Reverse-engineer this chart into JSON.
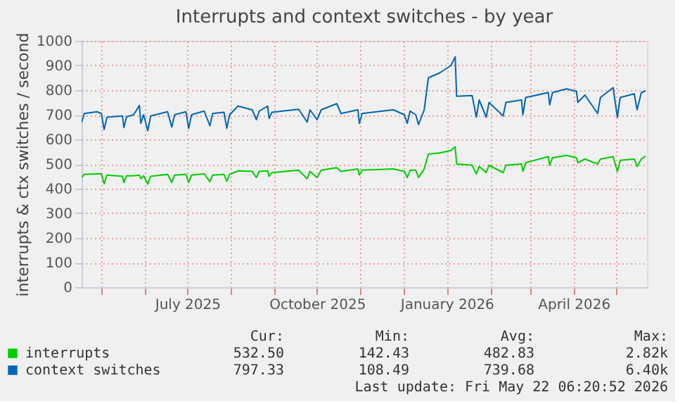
{
  "chart_data": {
    "type": "line",
    "title": "Interrupts and context switches - by year",
    "ylabel": "interrupts & ctx switches / second",
    "x": [
      "2025-04-17",
      "2025-04-19",
      "2025-04-28",
      "2025-05-01",
      "2025-05-03",
      "2025-05-05",
      "2025-05-16",
      "2025-05-17",
      "2025-05-19",
      "2025-05-24",
      "2025-05-28",
      "2025-05-29",
      "2025-05-31",
      "2025-06-03",
      "2025-06-05",
      "2025-06-17",
      "2025-06-20",
      "2025-06-22",
      "2025-06-30",
      "2025-07-02",
      "2025-07-04",
      "2025-07-13",
      "2025-07-17",
      "2025-07-19",
      "2025-07-27",
      "2025-07-29",
      "2025-07-31",
      "2025-08-06",
      "2025-08-16",
      "2025-08-19",
      "2025-08-21",
      "2025-08-27",
      "2025-08-28",
      "2025-08-30",
      "2025-09-18",
      "2025-09-24",
      "2025-09-26",
      "2025-10-01",
      "2025-10-04",
      "2025-10-15",
      "2025-10-18",
      "2025-10-30",
      "2025-10-31",
      "2025-11-02",
      "2025-11-24",
      "2025-12-02",
      "2025-12-04",
      "2025-12-06",
      "2025-12-10",
      "2025-12-12",
      "2025-12-16",
      "2025-12-19",
      "2025-12-27",
      "2026-01-04",
      "2026-01-07",
      "2026-01-08",
      "2026-01-19",
      "2026-01-22",
      "2026-01-24",
      "2026-01-29",
      "2026-01-31",
      "2026-02-10",
      "2026-02-12",
      "2026-02-23",
      "2026-02-24",
      "2026-02-26",
      "2026-03-14",
      "2026-03-15",
      "2026-03-17",
      "2026-03-27",
      "2026-04-03",
      "2026-04-04",
      "2026-04-09",
      "2026-04-18",
      "2026-04-20",
      "2026-04-29",
      "2026-05-02",
      "2026-05-04",
      "2026-05-14",
      "2026-05-16",
      "2026-05-19",
      "2026-05-22"
    ],
    "series": [
      {
        "name": "interrupts",
        "color": "#00cc00",
        "values": [
          445,
          458,
          460,
          460,
          420,
          455,
          450,
          425,
          452,
          452,
          455,
          440,
          452,
          418,
          450,
          458,
          425,
          455,
          458,
          425,
          455,
          460,
          428,
          455,
          458,
          430,
          458,
          472,
          470,
          445,
          470,
          472,
          450,
          465,
          475,
          440,
          470,
          445,
          475,
          485,
          470,
          480,
          455,
          475,
          480,
          470,
          445,
          475,
          475,
          445,
          480,
          540,
          545,
          555,
          570,
          500,
          495,
          460,
          490,
          465,
          495,
          465,
          495,
          500,
          470,
          505,
          530,
          495,
          525,
          535,
          525,
          505,
          520,
          500,
          520,
          530,
          470,
          515,
          520,
          490,
          520,
          532
        ]
      },
      {
        "name": "context switches",
        "color": "#0066b3",
        "values": [
          670,
          705,
          712,
          705,
          640,
          690,
          695,
          648,
          692,
          700,
          738,
          665,
          700,
          635,
          695,
          712,
          650,
          700,
          712,
          645,
          700,
          715,
          655,
          705,
          710,
          645,
          700,
          735,
          720,
          680,
          715,
          735,
          685,
          710,
          722,
          670,
          720,
          680,
          720,
          745,
          705,
          720,
          665,
          705,
          720,
          700,
          665,
          715,
          700,
          660,
          720,
          850,
          870,
          900,
          935,
          775,
          778,
          690,
          760,
          690,
          750,
          695,
          750,
          760,
          700,
          770,
          790,
          740,
          790,
          805,
          795,
          750,
          780,
          705,
          770,
          810,
          690,
          770,
          785,
          720,
          790,
          797
        ]
      }
    ],
    "xlim": [
      "2025-04-17",
      "2026-05-23"
    ],
    "xticks": [
      {
        "value": "2025-05-01",
        "label": null
      },
      {
        "value": "2025-06-01",
        "label": null
      },
      {
        "value": "2025-07-01",
        "label": "July 2025"
      },
      {
        "value": "2025-08-01",
        "label": null
      },
      {
        "value": "2025-09-01",
        "label": null
      },
      {
        "value": "2025-10-01",
        "label": "October 2025"
      },
      {
        "value": "2025-11-01",
        "label": null
      },
      {
        "value": "2025-12-01",
        "label": null
      },
      {
        "value": "2026-01-01",
        "label": "January 2026"
      },
      {
        "value": "2026-02-01",
        "label": null
      },
      {
        "value": "2026-03-01",
        "label": null
      },
      {
        "value": "2026-04-01",
        "label": "April 2026"
      },
      {
        "value": "2026-05-01",
        "label": null
      }
    ],
    "ylim": [
      0,
      1000
    ],
    "yticks": [
      0,
      100,
      200,
      300,
      400,
      500,
      600,
      700,
      800,
      900,
      1000
    ],
    "grid": true,
    "legend": "bottom",
    "marker": "none",
    "line_style": "solid",
    "annotations": [
      "Cur:",
      "Min:",
      "Avg:",
      "Max:",
      "532.50",
      "142.43",
      "482.83",
      "2.82k",
      "797.33",
      "108.49",
      "739.68",
      "6.40k",
      "Last update: Fri May 22 06:20:52 2026"
    ]
  }
}
